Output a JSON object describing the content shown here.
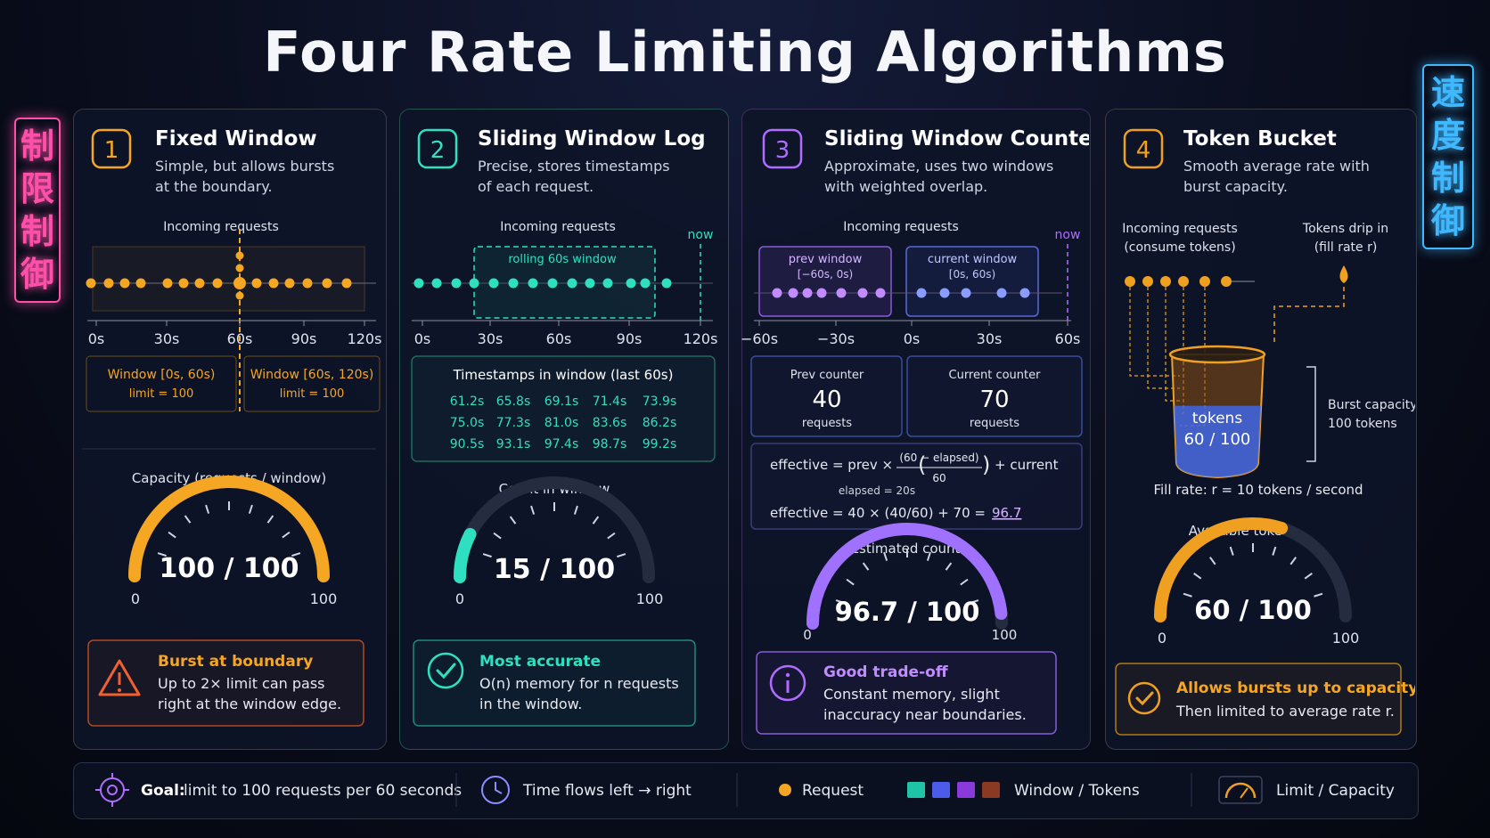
{
  "title": "Four Rate Limiting Algorithms",
  "signs": {
    "left": "制限制御",
    "right": "速度制御"
  },
  "colors": {
    "orange": "#f5a623",
    "teal": "#2ee0c0",
    "purple": "#b06cff",
    "amber": "#f0a020"
  },
  "panel1": {
    "num": "1",
    "heading": "Fixed Window",
    "desc1": "Simple, but allows bursts",
    "desc2": "at the boundary.",
    "timeline_label": "Incoming requests",
    "ticks": [
      "0s",
      "30s",
      "60s",
      "90s",
      "120s"
    ],
    "window1_title": "Window [0s, 60s)",
    "window1_limit": "limit = 100",
    "window2_title": "Window [60s, 120s)",
    "window2_limit": "limit = 100",
    "gauge_label": "Capacity (requests / window)",
    "gauge_value": "100 / 100",
    "gauge_min": "0",
    "gauge_max": "100",
    "gauge_fraction": 1.0,
    "note_title": "Burst at boundary",
    "note_line1": "Up to 2× limit can pass",
    "note_line2": "right at the window edge.",
    "icon": "warning-icon"
  },
  "panel2": {
    "num": "2",
    "heading": "Sliding Window Log",
    "desc1": "Precise, stores timestamps",
    "desc2": "of each request.",
    "timeline_label": "Incoming requests",
    "now_label": "now",
    "rolling_label": "rolling 60s window",
    "ticks": [
      "0s",
      "30s",
      "60s",
      "90s",
      "120s"
    ],
    "table_title": "Timestamps in window (last 60s)",
    "timestamps": [
      [
        "61.2s",
        "65.8s",
        "69.1s",
        "71.4s",
        "73.9s"
      ],
      [
        "75.0s",
        "77.3s",
        "81.0s",
        "83.6s",
        "86.2s"
      ],
      [
        "90.5s",
        "93.1s",
        "97.4s",
        "98.7s",
        "99.2s"
      ]
    ],
    "gauge_label": "Count in window",
    "gauge_value": "15 / 100",
    "gauge_min": "0",
    "gauge_max": "100",
    "gauge_fraction": 0.15,
    "note_title": "Most accurate",
    "note_line1": "O(n) memory for n requests",
    "note_line2": "in the window.",
    "icon": "check-circle-icon"
  },
  "panel3": {
    "num": "3",
    "heading": "Sliding Window Counter",
    "desc1": "Approximate, uses two windows",
    "desc2": "with weighted overlap.",
    "timeline_label": "Incoming requests",
    "now_label": "now",
    "prev_window": "prev window",
    "prev_range": "[−60s, 0s)",
    "current_window": "current window",
    "current_range": "[0s, 60s)",
    "ticks": [
      "−60s",
      "−30s",
      "0s",
      "30s",
      "60s"
    ],
    "prev_counter_label": "Prev counter",
    "prev_counter_value": "40",
    "prev_counter_unit": "requests",
    "current_counter_label": "Current counter",
    "current_counter_value": "70",
    "current_counter_unit": "requests",
    "formula_a": "effective = prev ×",
    "formula_num": "(60 − elapsed)",
    "formula_den": "60",
    "formula_b": "+ current",
    "elapsed": "elapsed = 20s",
    "formula2": "effective = 40 × (40/60) + 70 =",
    "formula2_result": "96.7",
    "gauge_label": "Estimated count",
    "gauge_value": "96.7 / 100",
    "gauge_min": "0",
    "gauge_max": "100",
    "gauge_fraction": 0.967,
    "note_title": "Good trade-off",
    "note_line1": "Constant memory, slight",
    "note_line2": "inaccuracy near boundaries.",
    "icon": "info-icon"
  },
  "panel4": {
    "num": "4",
    "heading": "Token Bucket",
    "desc1": "Smooth average rate with",
    "desc2": "burst capacity.",
    "incoming1": "Incoming requests",
    "incoming2": "(consume tokens)",
    "drip1": "Tokens drip in",
    "drip2": "(fill rate r)",
    "bucket_label": "tokens",
    "bucket_value": "60 / 100",
    "bucket_fraction": 0.6,
    "burst1": "Burst capacity",
    "burst2": "100 tokens",
    "fill_rate": "Fill rate: r = 10 tokens / second",
    "gauge_label": "Available tokens",
    "gauge_value": "60 / 100",
    "gauge_min": "0",
    "gauge_max": "100",
    "gauge_fraction": 0.6,
    "note_title": "Allows bursts up to capacity",
    "note_line1": "Then limited to average rate r.",
    "icon": "check-circle-icon"
  },
  "legend": {
    "goal_strong": "Goal:",
    "goal_text": "limit to 100 requests per 60 seconds",
    "time_text": "Time flows left → right",
    "request_text": "Request",
    "window_text": "Window / Tokens",
    "limit_text": "Limit / Capacity"
  }
}
